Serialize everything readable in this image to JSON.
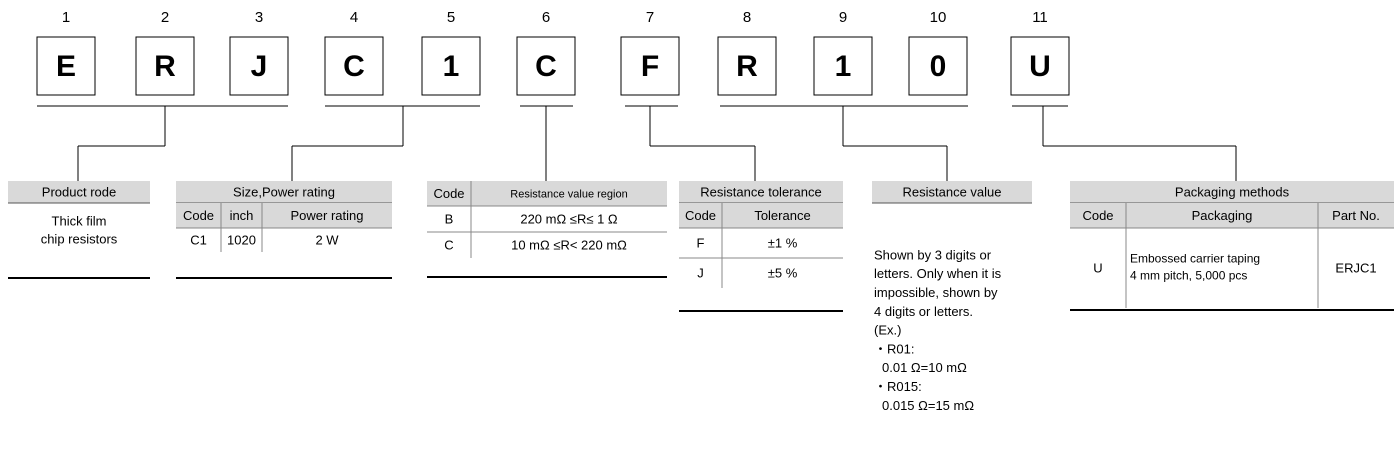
{
  "code": [
    {
      "number": "1",
      "letter": "E"
    },
    {
      "number": "2",
      "letter": "R"
    },
    {
      "number": "3",
      "letter": "J"
    },
    {
      "number": "4",
      "letter": "C"
    },
    {
      "number": "5",
      "letter": "1"
    },
    {
      "number": "6",
      "letter": "C"
    },
    {
      "number": "7",
      "letter": "F"
    },
    {
      "number": "8",
      "letter": "R"
    },
    {
      "number": "9",
      "letter": "1"
    },
    {
      "number": "10",
      "letter": "0"
    },
    {
      "number": "11",
      "letter": "U"
    }
  ],
  "sections": [
    {
      "title": "Product rode",
      "lines": [
        "Thick film",
        "chip resistors"
      ]
    },
    {
      "title": "Size,Power rating",
      "columns": [
        "Code",
        "inch",
        "Power rating"
      ],
      "rows": [
        [
          "C1",
          "1020",
          "2 W"
        ]
      ]
    },
    {
      "columns": [
        "Code",
        "Resistance value region"
      ],
      "rows": [
        [
          "B",
          "220 mΩ ≤R≤ 1 Ω"
        ],
        [
          "C",
          "10 mΩ ≤R< 220 mΩ"
        ]
      ]
    },
    {
      "title": "Resistance tolerance",
      "columns": [
        "Code",
        "Tolerance"
      ],
      "rows": [
        [
          "F",
          "±1 %"
        ],
        [
          "J",
          "±5 %"
        ]
      ]
    },
    {
      "title": "Resistance value",
      "lines": [
        "Shown by 3 digits or",
        "letters. Only when it is",
        "impossible, shown by",
        "4 digits or letters.",
        "(Ex.)",
        "・R01:",
        "0.01 Ω=10 mΩ",
        "・R015:",
        "0.015 Ω=15 mΩ"
      ]
    },
    {
      "title": "Packaging methods",
      "columns": [
        "Code",
        "Packaging",
        "Part No."
      ],
      "rows": [
        [
          "U",
          [
            "Embossed carrier taping",
            "4 mm pitch, 5,000 pcs"
          ],
          "ERJC1"
        ]
      ]
    }
  ]
}
